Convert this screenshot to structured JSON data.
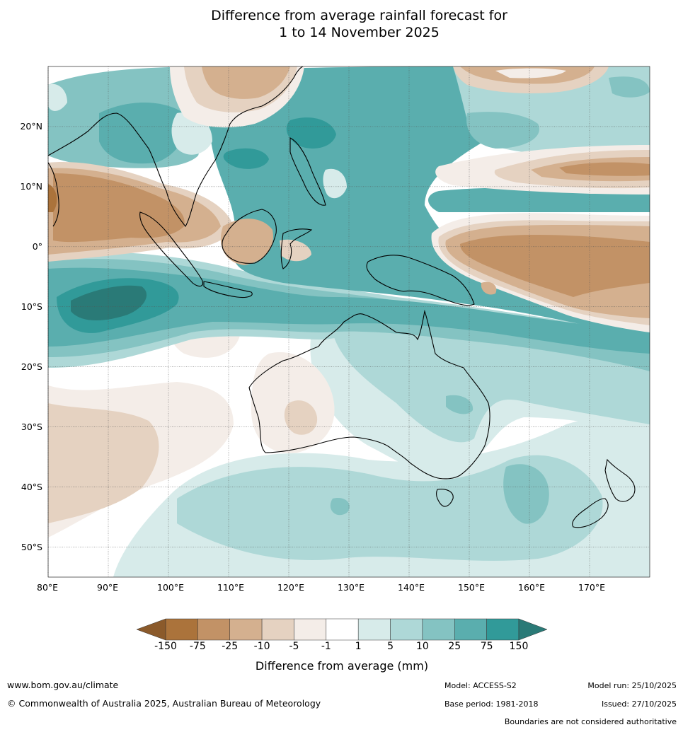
{
  "title": {
    "line1": "Difference from average rainfall forecast for",
    "line2": "1 to 14 November 2025"
  },
  "map": {
    "extent": {
      "lon_min": 80,
      "lon_max": 180,
      "lat_min": -55,
      "lat_max": 30
    },
    "lat_ticks": [
      {
        "value": 20,
        "label": "20°N"
      },
      {
        "value": 10,
        "label": "10°N"
      },
      {
        "value": 0,
        "label": "0°"
      },
      {
        "value": -10,
        "label": "10°S"
      },
      {
        "value": -20,
        "label": "20°S"
      },
      {
        "value": -30,
        "label": "30°S"
      },
      {
        "value": -40,
        "label": "40°S"
      },
      {
        "value": -50,
        "label": "50°S"
      }
    ],
    "lon_ticks": [
      {
        "value": 80,
        "label": "80°E"
      },
      {
        "value": 90,
        "label": "90°E"
      },
      {
        "value": 100,
        "label": "100°E"
      },
      {
        "value": 110,
        "label": "110°E"
      },
      {
        "value": 120,
        "label": "120°E"
      },
      {
        "value": 130,
        "label": "130°E"
      },
      {
        "value": 140,
        "label": "140°E"
      },
      {
        "value": 150,
        "label": "150°E"
      },
      {
        "value": 160,
        "label": "160°E"
      },
      {
        "value": 170,
        "label": "170°E"
      }
    ]
  },
  "colorbar": {
    "title": "Difference from average (mm)",
    "ticks": [
      "-150",
      "-75",
      "-25",
      "-10",
      "-5",
      "-1",
      "1",
      "5",
      "10",
      "25",
      "75",
      "150"
    ],
    "colors": [
      "#ab733b",
      "#c29266",
      "#d4b08f",
      "#e5d2c1",
      "#f4ede8",
      "#ffffff",
      "#d7ebea",
      "#aed8d7",
      "#84c3c2",
      "#5aaeae",
      "#319a99"
    ],
    "extend_low_color": "#8b5a2b",
    "extend_high_color": "#2a7a77"
  },
  "footer": {
    "website": "www.bom.gov.au/climate",
    "copyright": "© Commonwealth of Australia 2025, Australian Bureau of Meteorology",
    "model": "Model: ACCESS-S2",
    "base_period": "Base period: 1981-2018",
    "model_run": "Model run: 25/10/2025",
    "issued": "Issued: 27/10/2025",
    "disclaimer": "Boundaries are not considered authoritative"
  }
}
